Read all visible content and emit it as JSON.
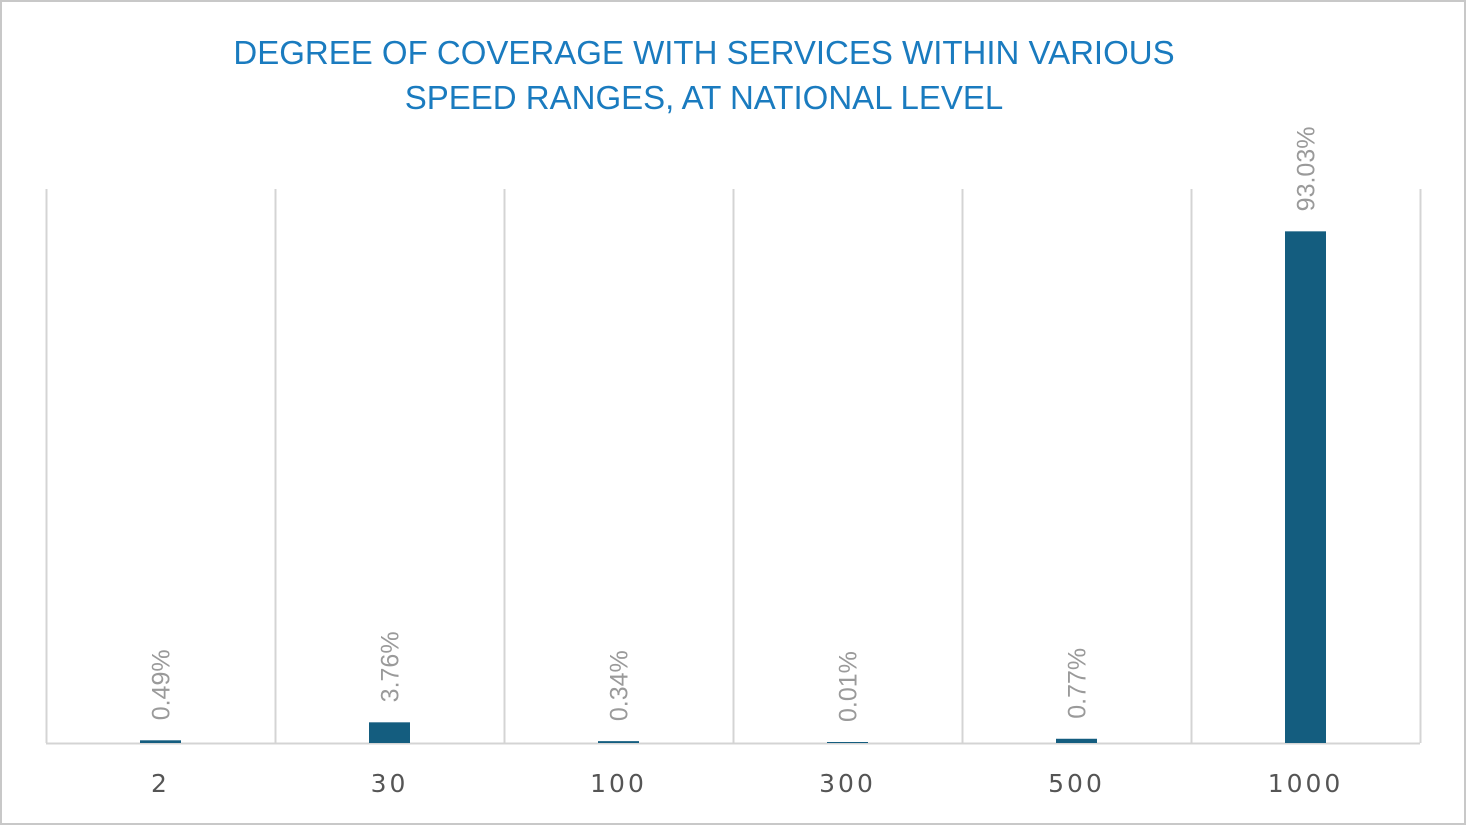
{
  "chart_data": {
    "type": "bar",
    "title": "DEGREE OF COVERAGE WITH SERVICES WITHIN VARIOUS\nSPEED RANGES, AT NATIONAL LEVEL",
    "xlabel": "",
    "ylabel": "",
    "categories": [
      "2",
      "30",
      "100",
      "300",
      "500",
      "1000"
    ],
    "values": [
      0.49,
      3.76,
      0.34,
      0.01,
      0.77,
      93.03
    ],
    "data_labels": [
      "0.49%",
      "3.76%",
      "0.34%",
      "0.01%",
      "0.77%",
      "93.03%"
    ],
    "ylim": [
      0,
      100
    ],
    "grid": "vertical category separators",
    "legend": "none",
    "colors": {
      "bar": "#145d7f",
      "title": "#1a7bbf",
      "grid": "#d4d4d4",
      "axis_labels": "#555555",
      "data_labels": "#9a9a9a"
    }
  }
}
